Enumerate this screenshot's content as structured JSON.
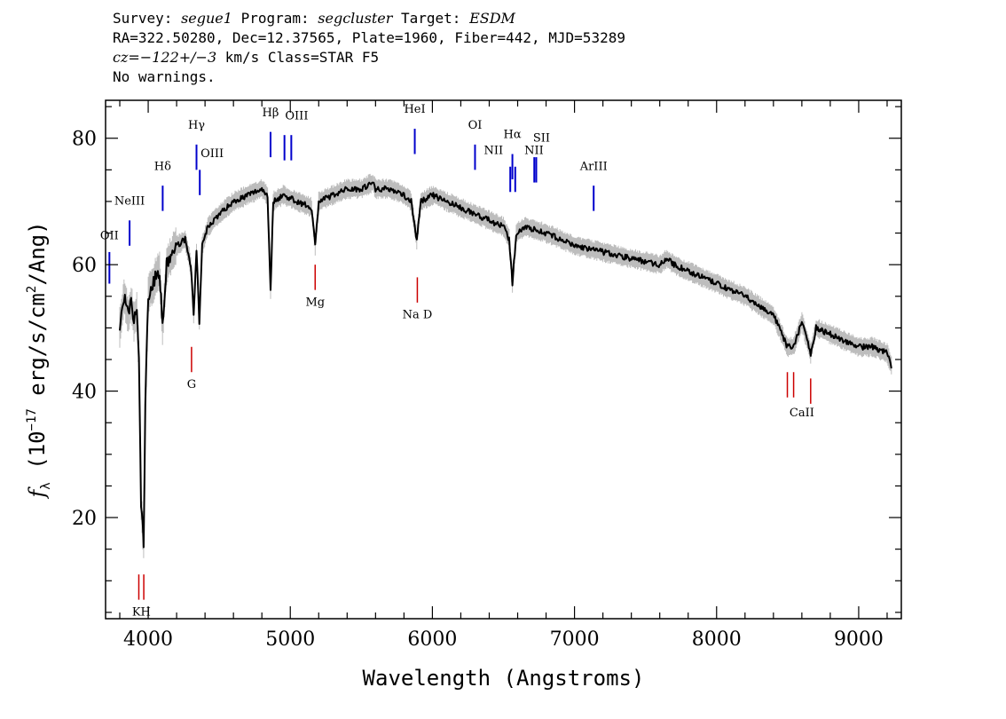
{
  "header": {
    "survey_label": "Survey:",
    "survey": "segue1",
    "program_label": "Program:",
    "program": "segcluster",
    "target_label": "Target:",
    "target": "ESDM",
    "line2": "RA=322.50280, Dec=12.37565, Plate=1960, Fiber=442, MJD=53289",
    "cz_label": "cz",
    "cz_value": "=−122+/−3",
    "cz_rest": " km/s Class=STAR F5",
    "line4": "No warnings."
  },
  "chart_data": {
    "type": "line",
    "xlabel": "Wavelength (Angstroms)",
    "ylabel_prefix": "f",
    "ylabel_sub": "λ",
    "ylabel_text": " (10",
    "ylabel_exp": "−17",
    "ylabel_mid": " erg/s/cm",
    "ylabel_exp2": "2",
    "ylabel_end": "/Ang)",
    "xlim": [
      3700,
      9300
    ],
    "ylim": [
      4,
      86
    ],
    "x_ticks": [
      4000,
      5000,
      6000,
      7000,
      8000,
      9000
    ],
    "x_tick_labels": [
      "4000",
      "5000",
      "6000",
      "7000",
      "8000",
      "9000"
    ],
    "y_ticks": [
      20,
      40,
      60,
      80
    ],
    "y_tick_labels": [
      "20",
      "40",
      "60",
      "80"
    ],
    "series": [
      {
        "color": "#000000",
        "x": [
          3800,
          3830,
          3860,
          3880,
          3900,
          3920,
          3935,
          3950,
          3968,
          3980,
          4000,
          4050,
          4080,
          4101,
          4130,
          4200,
          4260,
          4300,
          4320,
          4340,
          4360,
          4380,
          4420,
          4500,
          4600,
          4700,
          4800,
          4840,
          4861,
          4880,
          4950,
          5050,
          5150,
          5175,
          5200,
          5300,
          5400,
          5500,
          5580,
          5600,
          5700,
          5800,
          5850,
          5890,
          5920,
          6000,
          6100,
          6200,
          6300,
          6400,
          6500,
          6540,
          6563,
          6590,
          6650,
          6800,
          7000,
          7200,
          7400,
          7600,
          7650,
          7700,
          7800,
          8000,
          8200,
          8400,
          8498,
          8542,
          8600,
          8662,
          8700,
          8800,
          9000,
          9100,
          9200,
          9230
        ],
        "y": [
          50,
          55,
          52,
          54,
          51,
          53,
          45,
          22,
          16,
          38,
          55,
          58,
          59,
          50,
          60,
          63,
          64,
          60,
          52,
          62,
          51,
          63,
          66,
          68,
          70,
          71,
          72,
          71,
          56,
          70,
          71,
          70,
          69,
          63,
          70,
          71,
          72,
          72,
          73,
          72,
          72,
          71,
          70,
          64,
          70,
          71,
          70,
          69,
          68,
          67,
          66,
          64,
          57,
          65,
          66,
          65,
          63,
          62,
          61,
          60,
          61,
          60,
          59,
          57,
          55,
          52,
          47,
          47,
          51,
          46,
          50,
          49,
          47,
          47,
          46,
          44
        ]
      }
    ],
    "emission_lines": [
      {
        "label": "OII",
        "x": 3727,
        "y1": 62,
        "y2": 57
      },
      {
        "label": "NeIII",
        "x": 3869,
        "y1": 67,
        "y2": 63
      },
      {
        "label": "Hδ",
        "x": 4102,
        "y1": 72.5,
        "y2": 68.5
      },
      {
        "label": "Hγ",
        "x": 4340,
        "y1": 79,
        "y2": 75
      },
      {
        "label": "OIII",
        "x": 4363,
        "y1": 75,
        "y2": 71
      },
      {
        "label": "Hβ",
        "x": 4861,
        "y1": 81,
        "y2": 77
      },
      {
        "label": "OIII",
        "x": 4959,
        "y1": 80.5,
        "y2": 76.5
      },
      {
        "label": "OIII",
        "x": 5007,
        "y1": 80.5,
        "y2": 76.5
      },
      {
        "label": "HeI",
        "x": 5876,
        "y1": 81.5,
        "y2": 77.5
      },
      {
        "label": "OI",
        "x": 6300,
        "y1": 79,
        "y2": 75
      },
      {
        "label": "NII",
        "x": 6548,
        "y1": 75.5,
        "y2": 71.5
      },
      {
        "label": "Hα",
        "x": 6563,
        "y1": 77.5,
        "y2": 73.5
      },
      {
        "label": "NII",
        "x": 6583,
        "y1": 75.5,
        "y2": 71.5
      },
      {
        "label": "SII",
        "x": 6717,
        "y1": 77,
        "y2": 73
      },
      {
        "label": "SII",
        "x": 6731,
        "y1": 77,
        "y2": 73
      },
      {
        "label": "ArIII",
        "x": 7135,
        "y1": 72.5,
        "y2": 68.5
      }
    ],
    "absorption_lines": [
      {
        "label": "K",
        "x": 3934,
        "y1": 11,
        "y2": 7
      },
      {
        "label": "H",
        "x": 3969,
        "y1": 11,
        "y2": 7
      },
      {
        "label": "G",
        "x": 4305,
        "y1": 47,
        "y2": 43
      },
      {
        "label": "Mg",
        "x": 5175,
        "y1": 60,
        "y2": 56
      },
      {
        "label": "Na D",
        "x": 5894,
        "y1": 58,
        "y2": 54
      },
      {
        "label": "CaII",
        "x": 8498,
        "y1": 43,
        "y2": 39
      },
      {
        "label": "CaII",
        "x": 8542,
        "y1": 43,
        "y2": 39
      },
      {
        "label": "CaII",
        "x": 8662,
        "y1": 42,
        "y2": 38
      }
    ],
    "label_entries": [
      {
        "text": "OII",
        "x": 3727,
        "y": 64
      },
      {
        "text": "NeIII",
        "x": 3869,
        "y": 69.5
      },
      {
        "text": "Hδ",
        "x": 4102,
        "y": 75
      },
      {
        "text": "Hγ",
        "x": 4340,
        "y": 81.5
      },
      {
        "text": "OIII",
        "x": 4450,
        "y": 77
      },
      {
        "text": "Hβ",
        "x": 4861,
        "y": 83.5
      },
      {
        "text": "OIII",
        "x": 5045,
        "y": 83
      },
      {
        "text": "HeI",
        "x": 5876,
        "y": 84
      },
      {
        "text": "OI",
        "x": 6300,
        "y": 81.5
      },
      {
        "text": "NII",
        "x": 6430,
        "y": 77.5
      },
      {
        "text": "Hα",
        "x": 6563,
        "y": 80
      },
      {
        "text": "SII",
        "x": 6768,
        "y": 79.5
      },
      {
        "text": "NII",
        "x": 6715,
        "y": 77.5
      },
      {
        "text": "ArIII",
        "x": 7135,
        "y": 75
      },
      {
        "text": "G",
        "x": 4305,
        "y": 40.5
      },
      {
        "text": "Mg",
        "x": 5175,
        "y": 53.5
      },
      {
        "text": "Na  D",
        "x": 5894,
        "y": 51.5
      },
      {
        "text": "CaII",
        "x": 8600,
        "y": 36
      },
      {
        "text": "KH",
        "x": 3952,
        "y": 4.5
      }
    ],
    "colors": {
      "flux": "#000000",
      "noise": "#bdbdbd",
      "emission": "#0000cc",
      "absorption": "#cc0000"
    }
  }
}
